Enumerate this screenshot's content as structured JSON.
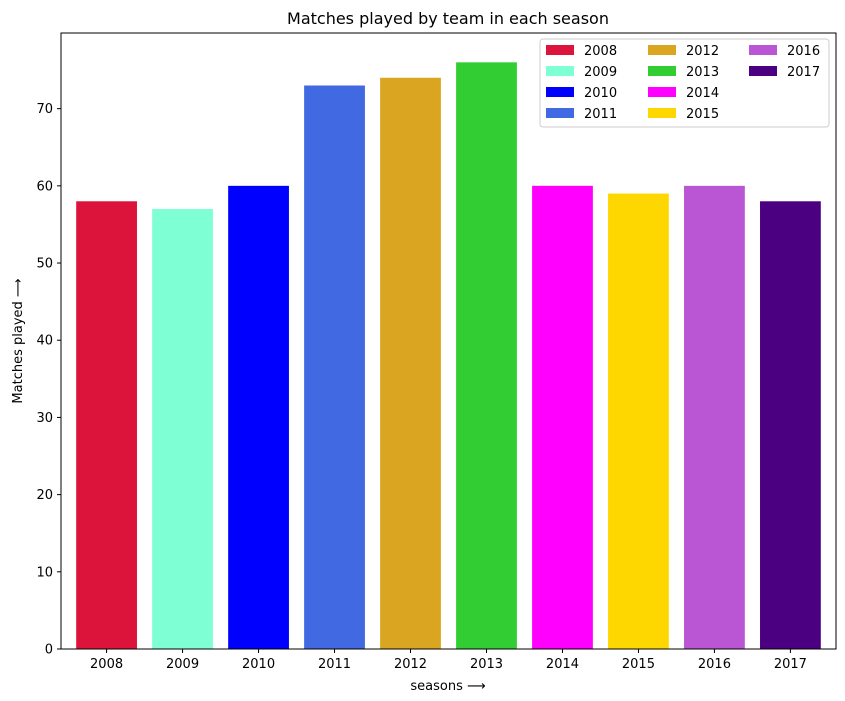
{
  "chart_data": {
    "type": "bar",
    "title": "Matches played by team in each season",
    "xlabel": "seasons  ⟶",
    "ylabel": "Matches played  ⟶",
    "categories": [
      "2008",
      "2009",
      "2010",
      "2011",
      "2012",
      "2013",
      "2014",
      "2015",
      "2016",
      "2017"
    ],
    "values": [
      58,
      57,
      60,
      73,
      74,
      76,
      60,
      59,
      60,
      58
    ],
    "colors": [
      "#DC143C",
      "#7FFFD4",
      "#0000FF",
      "#4169E1",
      "#DAA520",
      "#32CD32",
      "#FF00FF",
      "#FFD700",
      "#BA55D3",
      "#4B0082"
    ],
    "ylim": [
      0,
      79.8
    ],
    "yticks": [
      0,
      10,
      20,
      30,
      40,
      50,
      60,
      70
    ],
    "grid": false,
    "legend": {
      "placement": "top-right",
      "columns": 3,
      "entries": [
        "2008",
        "2009",
        "2010",
        "2011",
        "2012",
        "2013",
        "2014",
        "2015",
        "2016",
        "2017"
      ]
    }
  }
}
